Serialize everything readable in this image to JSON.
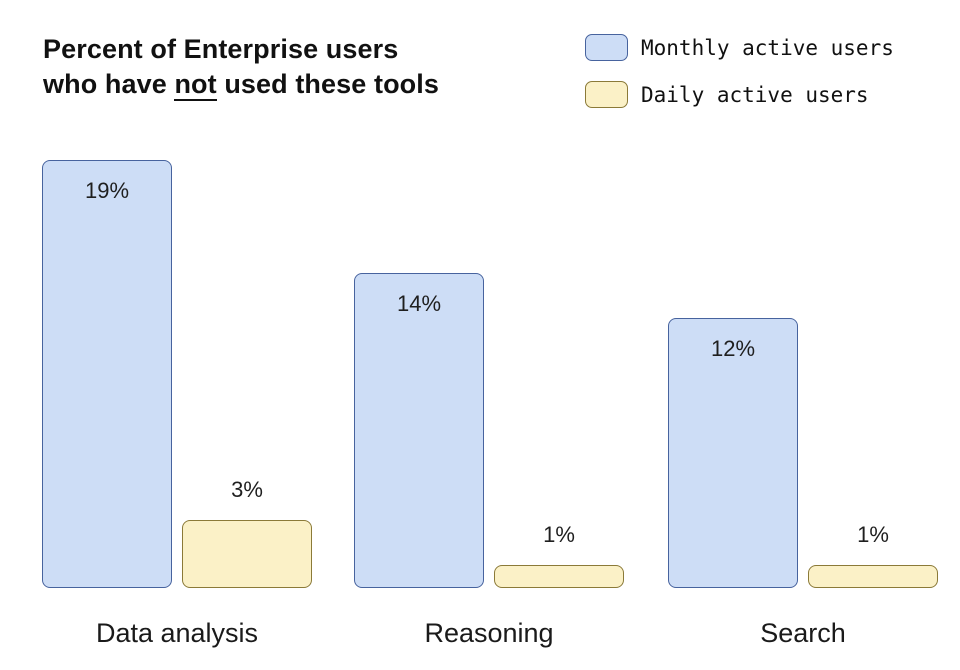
{
  "chart_title": {
    "line1": "Percent of Enterprise users",
    "line2_prefix": "who have ",
    "line2_underlined": "not",
    "line2_suffix": " used these tools"
  },
  "legend": {
    "items": [
      {
        "label": "Monthly active users",
        "fill": "#cdddf6",
        "border": "#47639e"
      },
      {
        "label": "Daily active users",
        "fill": "#fbf1c7",
        "border": "#8b7a38"
      }
    ]
  },
  "chart_data": {
    "type": "bar",
    "title": "Percent of Enterprise users who have not used these tools",
    "categories": [
      "Data analysis",
      "Reasoning",
      "Search"
    ],
    "series": [
      {
        "name": "Monthly active users",
        "values": [
          19,
          14,
          12
        ],
        "fill": "#cdddf6",
        "border": "#47639e"
      },
      {
        "name": "Daily active users",
        "values": [
          3,
          1,
          1
        ],
        "fill": "#fbf1c7",
        "border": "#8b7a38"
      }
    ],
    "unit": "%",
    "value_label_format": "{value}%",
    "ylim": [
      0,
      19
    ],
    "grid": false,
    "axes_visible": false,
    "legend_position": "top-right",
    "value_label_placement": {
      "Monthly active users": "inside-top",
      "Daily active users": "above"
    }
  },
  "colors": {
    "background": "#ffffff",
    "text": "#111111"
  }
}
